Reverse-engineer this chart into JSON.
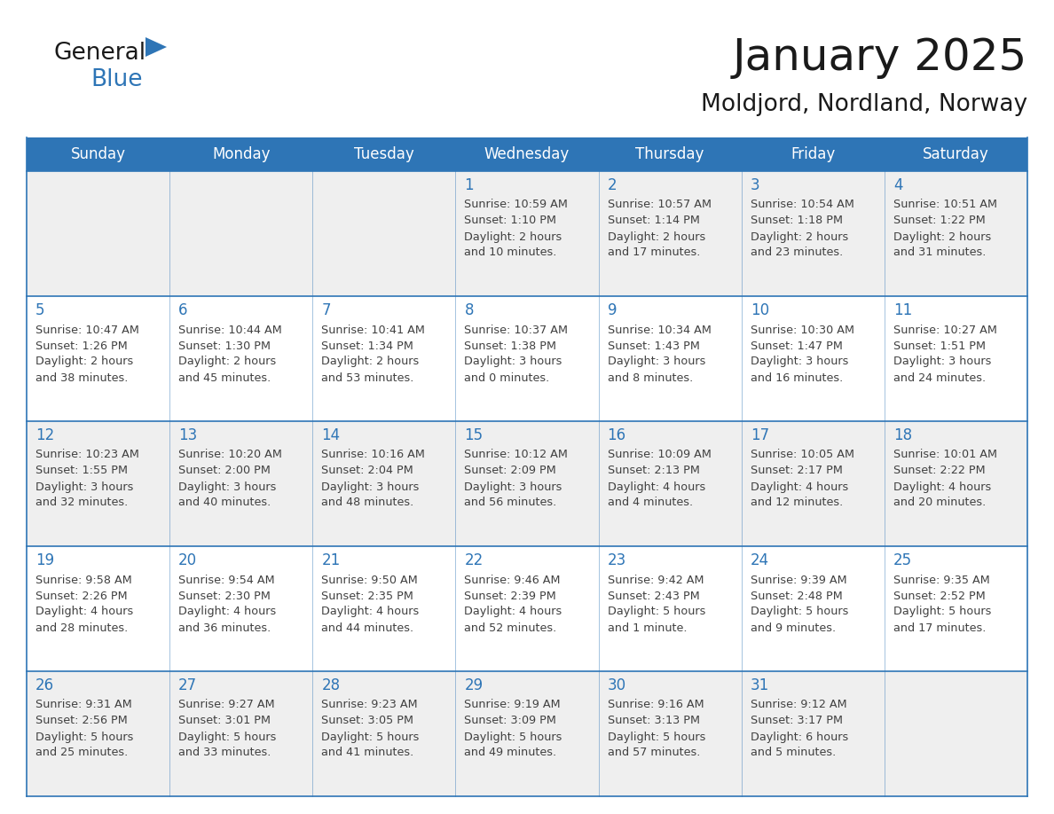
{
  "title": "January 2025",
  "subtitle": "Moldjord, Nordland, Norway",
  "days_of_week": [
    "Sunday",
    "Monday",
    "Tuesday",
    "Wednesday",
    "Thursday",
    "Friday",
    "Saturday"
  ],
  "header_bg": "#2E75B6",
  "header_text": "#FFFFFF",
  "row_bg_light": "#EFEFEF",
  "row_bg_white": "#FFFFFF",
  "border_color": "#2E75B6",
  "day_number_color": "#2E75B6",
  "text_color": "#404040",
  "title_color": "#1a1a1a",
  "calendar_data": [
    [
      null,
      null,
      null,
      {
        "day": "1",
        "sunrise": "10:59 AM",
        "sunset": "1:10 PM",
        "daylight1": "2 hours",
        "daylight2": "and 10 minutes."
      },
      {
        "day": "2",
        "sunrise": "10:57 AM",
        "sunset": "1:14 PM",
        "daylight1": "2 hours",
        "daylight2": "and 17 minutes."
      },
      {
        "day": "3",
        "sunrise": "10:54 AM",
        "sunset": "1:18 PM",
        "daylight1": "2 hours",
        "daylight2": "and 23 minutes."
      },
      {
        "day": "4",
        "sunrise": "10:51 AM",
        "sunset": "1:22 PM",
        "daylight1": "2 hours",
        "daylight2": "and 31 minutes."
      }
    ],
    [
      {
        "day": "5",
        "sunrise": "10:47 AM",
        "sunset": "1:26 PM",
        "daylight1": "2 hours",
        "daylight2": "and 38 minutes."
      },
      {
        "day": "6",
        "sunrise": "10:44 AM",
        "sunset": "1:30 PM",
        "daylight1": "2 hours",
        "daylight2": "and 45 minutes."
      },
      {
        "day": "7",
        "sunrise": "10:41 AM",
        "sunset": "1:34 PM",
        "daylight1": "2 hours",
        "daylight2": "and 53 minutes."
      },
      {
        "day": "8",
        "sunrise": "10:37 AM",
        "sunset": "1:38 PM",
        "daylight1": "3 hours",
        "daylight2": "and 0 minutes."
      },
      {
        "day": "9",
        "sunrise": "10:34 AM",
        "sunset": "1:43 PM",
        "daylight1": "3 hours",
        "daylight2": "and 8 minutes."
      },
      {
        "day": "10",
        "sunrise": "10:30 AM",
        "sunset": "1:47 PM",
        "daylight1": "3 hours",
        "daylight2": "and 16 minutes."
      },
      {
        "day": "11",
        "sunrise": "10:27 AM",
        "sunset": "1:51 PM",
        "daylight1": "3 hours",
        "daylight2": "and 24 minutes."
      }
    ],
    [
      {
        "day": "12",
        "sunrise": "10:23 AM",
        "sunset": "1:55 PM",
        "daylight1": "3 hours",
        "daylight2": "and 32 minutes."
      },
      {
        "day": "13",
        "sunrise": "10:20 AM",
        "sunset": "2:00 PM",
        "daylight1": "3 hours",
        "daylight2": "and 40 minutes."
      },
      {
        "day": "14",
        "sunrise": "10:16 AM",
        "sunset": "2:04 PM",
        "daylight1": "3 hours",
        "daylight2": "and 48 minutes."
      },
      {
        "day": "15",
        "sunrise": "10:12 AM",
        "sunset": "2:09 PM",
        "daylight1": "3 hours",
        "daylight2": "and 56 minutes."
      },
      {
        "day": "16",
        "sunrise": "10:09 AM",
        "sunset": "2:13 PM",
        "daylight1": "4 hours",
        "daylight2": "and 4 minutes."
      },
      {
        "day": "17",
        "sunrise": "10:05 AM",
        "sunset": "2:17 PM",
        "daylight1": "4 hours",
        "daylight2": "and 12 minutes."
      },
      {
        "day": "18",
        "sunrise": "10:01 AM",
        "sunset": "2:22 PM",
        "daylight1": "4 hours",
        "daylight2": "and 20 minutes."
      }
    ],
    [
      {
        "day": "19",
        "sunrise": "9:58 AM",
        "sunset": "2:26 PM",
        "daylight1": "4 hours",
        "daylight2": "and 28 minutes."
      },
      {
        "day": "20",
        "sunrise": "9:54 AM",
        "sunset": "2:30 PM",
        "daylight1": "4 hours",
        "daylight2": "and 36 minutes."
      },
      {
        "day": "21",
        "sunrise": "9:50 AM",
        "sunset": "2:35 PM",
        "daylight1": "4 hours",
        "daylight2": "and 44 minutes."
      },
      {
        "day": "22",
        "sunrise": "9:46 AM",
        "sunset": "2:39 PM",
        "daylight1": "4 hours",
        "daylight2": "and 52 minutes."
      },
      {
        "day": "23",
        "sunrise": "9:42 AM",
        "sunset": "2:43 PM",
        "daylight1": "5 hours",
        "daylight2": "and 1 minute."
      },
      {
        "day": "24",
        "sunrise": "9:39 AM",
        "sunset": "2:48 PM",
        "daylight1": "5 hours",
        "daylight2": "and 9 minutes."
      },
      {
        "day": "25",
        "sunrise": "9:35 AM",
        "sunset": "2:52 PM",
        "daylight1": "5 hours",
        "daylight2": "and 17 minutes."
      }
    ],
    [
      {
        "day": "26",
        "sunrise": "9:31 AM",
        "sunset": "2:56 PM",
        "daylight1": "5 hours",
        "daylight2": "and 25 minutes."
      },
      {
        "day": "27",
        "sunrise": "9:27 AM",
        "sunset": "3:01 PM",
        "daylight1": "5 hours",
        "daylight2": "and 33 minutes."
      },
      {
        "day": "28",
        "sunrise": "9:23 AM",
        "sunset": "3:05 PM",
        "daylight1": "5 hours",
        "daylight2": "and 41 minutes."
      },
      {
        "day": "29",
        "sunrise": "9:19 AM",
        "sunset": "3:09 PM",
        "daylight1": "5 hours",
        "daylight2": "and 49 minutes."
      },
      {
        "day": "30",
        "sunrise": "9:16 AM",
        "sunset": "3:13 PM",
        "daylight1": "5 hours",
        "daylight2": "and 57 minutes."
      },
      {
        "day": "31",
        "sunrise": "9:12 AM",
        "sunset": "3:17 PM",
        "daylight1": "6 hours",
        "daylight2": "and 5 minutes."
      },
      null
    ]
  ]
}
